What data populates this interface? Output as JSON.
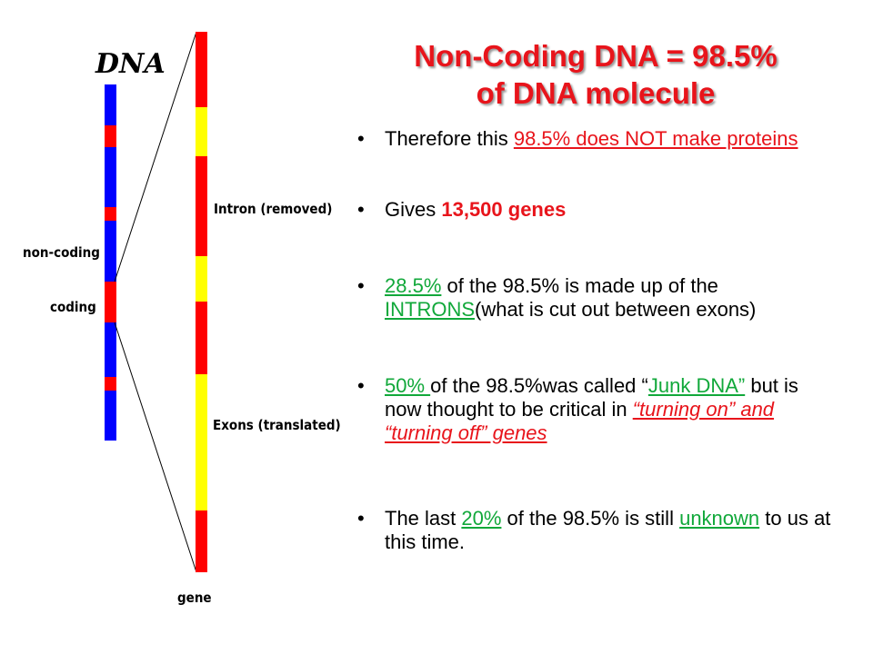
{
  "diagram": {
    "title": "DNA",
    "non_coding": "non-coding",
    "coding": "coding",
    "intron": "Intron (removed)",
    "exons": "Exons (translated)",
    "gene": "gene"
  },
  "slide": {
    "title": [
      "Non-Coding DNA = 98.5%",
      "of DNA molecule"
    ],
    "bullets": [
      [
        "Therefore this ",
        "98.5% does NOT make proteins"
      ],
      [
        "Gives ",
        "13,500 genes"
      ],
      [
        "28.5%",
        " of the 98.5% is made up of the ",
        "INTRONS",
        "(what is cut out between exons)"
      ],
      [
        "50% ",
        "of the 98.5%was called “",
        "Junk DNA”",
        " but is now thought to be critical  in ",
        "“turning on” and “turning off” genes"
      ],
      [
        "The last ",
        "20%",
        " of the 98.5% is still ",
        "unknown",
        " to us at this time."
      ]
    ]
  }
}
